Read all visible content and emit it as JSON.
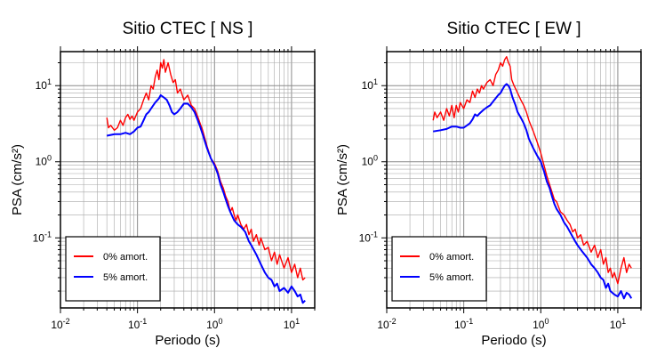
{
  "chart_data": [
    {
      "type": "line",
      "title": "Sitio CTEC [ NS ]",
      "xlabel": "Periodo (s)",
      "ylabel": "PSA (cm/s²)",
      "xscale": "log",
      "yscale": "log",
      "xlim": [
        0.01,
        20
      ],
      "ylim": [
        0.012,
        28
      ],
      "grid": true,
      "legend_position": "bottom-left",
      "series": [
        {
          "name": "0% amort.",
          "color": "#ff0000",
          "points": [
            [
              0.04,
              3.8
            ],
            [
              0.042,
              2.8
            ],
            [
              0.045,
              3.0
            ],
            [
              0.05,
              2.6
            ],
            [
              0.055,
              2.8
            ],
            [
              0.06,
              3.5
            ],
            [
              0.065,
              3.0
            ],
            [
              0.07,
              3.8
            ],
            [
              0.075,
              4.2
            ],
            [
              0.08,
              3.6
            ],
            [
              0.085,
              4.0
            ],
            [
              0.09,
              3.5
            ],
            [
              0.1,
              4.5
            ],
            [
              0.11,
              5.0
            ],
            [
              0.12,
              6.5
            ],
            [
              0.13,
              8.0
            ],
            [
              0.14,
              6.5
            ],
            [
              0.15,
              10.0
            ],
            [
              0.16,
              9.0
            ],
            [
              0.17,
              13.0
            ],
            [
              0.18,
              16.0
            ],
            [
              0.19,
              12.0
            ],
            [
              0.2,
              20.0
            ],
            [
              0.21,
              17.0
            ],
            [
              0.22,
              22.0
            ],
            [
              0.23,
              15.0
            ],
            [
              0.25,
              20.0
            ],
            [
              0.27,
              14.0
            ],
            [
              0.29,
              11.0
            ],
            [
              0.31,
              12.0
            ],
            [
              0.33,
              8.0
            ],
            [
              0.36,
              9.0
            ],
            [
              0.4,
              6.5
            ],
            [
              0.45,
              7.5
            ],
            [
              0.5,
              5.5
            ],
            [
              0.55,
              5.0
            ],
            [
              0.6,
              4.0
            ],
            [
              0.65,
              3.2
            ],
            [
              0.7,
              2.6
            ],
            [
              0.8,
              1.6
            ],
            [
              0.9,
              1.1
            ],
            [
              1.0,
              0.95
            ],
            [
              1.1,
              0.75
            ],
            [
              1.2,
              0.55
            ],
            [
              1.3,
              0.45
            ],
            [
              1.4,
              0.35
            ],
            [
              1.5,
              0.3
            ],
            [
              1.6,
              0.22
            ],
            [
              1.7,
              0.25
            ],
            [
              1.8,
              0.2
            ],
            [
              1.9,
              0.17
            ],
            [
              2.0,
              0.2
            ],
            [
              2.2,
              0.15
            ],
            [
              2.4,
              0.13
            ],
            [
              2.6,
              0.15
            ],
            [
              2.8,
              0.11
            ],
            [
              3.0,
              0.13
            ],
            [
              3.2,
              0.09
            ],
            [
              3.5,
              0.11
            ],
            [
              3.8,
              0.08
            ],
            [
              4.0,
              0.1
            ],
            [
              4.5,
              0.07
            ],
            [
              5.0,
              0.075
            ],
            [
              5.5,
              0.05
            ],
            [
              6.0,
              0.065
            ],
            [
              6.5,
              0.045
            ],
            [
              7.0,
              0.06
            ],
            [
              8.0,
              0.04
            ],
            [
              9.0,
              0.055
            ],
            [
              10.0,
              0.035
            ],
            [
              11.0,
              0.045
            ],
            [
              12.0,
              0.03
            ],
            [
              13.0,
              0.04
            ],
            [
              14.0,
              0.028
            ],
            [
              15.0,
              0.03
            ]
          ]
        },
        {
          "name": "5% amort.",
          "color": "#0000ff",
          "points": [
            [
              0.04,
              2.2
            ],
            [
              0.05,
              2.3
            ],
            [
              0.06,
              2.3
            ],
            [
              0.07,
              2.4
            ],
            [
              0.08,
              2.3
            ],
            [
              0.09,
              2.5
            ],
            [
              0.1,
              2.8
            ],
            [
              0.11,
              2.9
            ],
            [
              0.12,
              3.5
            ],
            [
              0.13,
              4.2
            ],
            [
              0.14,
              4.5
            ],
            [
              0.15,
              5.0
            ],
            [
              0.17,
              6.0
            ],
            [
              0.19,
              6.8
            ],
            [
              0.2,
              7.5
            ],
            [
              0.22,
              7.0
            ],
            [
              0.24,
              6.5
            ],
            [
              0.26,
              5.5
            ],
            [
              0.28,
              4.5
            ],
            [
              0.3,
              4.2
            ],
            [
              0.33,
              4.5
            ],
            [
              0.36,
              5.0
            ],
            [
              0.4,
              5.8
            ],
            [
              0.45,
              5.8
            ],
            [
              0.5,
              5.2
            ],
            [
              0.55,
              4.5
            ],
            [
              0.6,
              3.6
            ],
            [
              0.65,
              2.9
            ],
            [
              0.7,
              2.3
            ],
            [
              0.8,
              1.5
            ],
            [
              0.9,
              1.1
            ],
            [
              1.0,
              0.9
            ],
            [
              1.1,
              0.7
            ],
            [
              1.2,
              0.5
            ],
            [
              1.3,
              0.4
            ],
            [
              1.4,
              0.32
            ],
            [
              1.5,
              0.26
            ],
            [
              1.6,
              0.22
            ],
            [
              1.8,
              0.17
            ],
            [
              2.0,
              0.15
            ],
            [
              2.2,
              0.14
            ],
            [
              2.5,
              0.12
            ],
            [
              2.8,
              0.09
            ],
            [
              3.0,
              0.08
            ],
            [
              3.5,
              0.06
            ],
            [
              4.0,
              0.045
            ],
            [
              4.5,
              0.035
            ],
            [
              5.0,
              0.03
            ],
            [
              5.5,
              0.028
            ],
            [
              6.0,
              0.023
            ],
            [
              6.5,
              0.025
            ],
            [
              7.0,
              0.02
            ],
            [
              8.0,
              0.022
            ],
            [
              9.0,
              0.019
            ],
            [
              10.0,
              0.023
            ],
            [
              11.0,
              0.02
            ],
            [
              12.0,
              0.017
            ],
            [
              13.0,
              0.018
            ],
            [
              14.0,
              0.014
            ],
            [
              15.0,
              0.015
            ]
          ]
        }
      ]
    },
    {
      "type": "line",
      "title": "Sitio CTEC [ EW ]",
      "xlabel": "Periodo (s)",
      "ylabel": "PSA (cm/s²)",
      "xscale": "log",
      "yscale": "log",
      "xlim": [
        0.01,
        20
      ],
      "ylim": [
        0.012,
        28
      ],
      "grid": true,
      "legend_position": "bottom-left",
      "series": [
        {
          "name": "0% amort.",
          "color": "#ff0000",
          "points": [
            [
              0.04,
              3.5
            ],
            [
              0.042,
              4.5
            ],
            [
              0.045,
              3.8
            ],
            [
              0.05,
              4.5
            ],
            [
              0.055,
              3.5
            ],
            [
              0.06,
              5.0
            ],
            [
              0.065,
              4.0
            ],
            [
              0.07,
              5.5
            ],
            [
              0.075,
              3.8
            ],
            [
              0.08,
              5.5
            ],
            [
              0.085,
              4.5
            ],
            [
              0.09,
              6.0
            ],
            [
              0.1,
              5.0
            ],
            [
              0.11,
              6.5
            ],
            [
              0.12,
              6.0
            ],
            [
              0.13,
              8.5
            ],
            [
              0.14,
              7.0
            ],
            [
              0.15,
              9.0
            ],
            [
              0.16,
              8.0
            ],
            [
              0.17,
              10.0
            ],
            [
              0.18,
              9.0
            ],
            [
              0.2,
              11.0
            ],
            [
              0.22,
              12.0
            ],
            [
              0.24,
              10.0
            ],
            [
              0.26,
              14.0
            ],
            [
              0.28,
              16.0
            ],
            [
              0.3,
              20.0
            ],
            [
              0.32,
              18.0
            ],
            [
              0.34,
              22.0
            ],
            [
              0.36,
              24.0
            ],
            [
              0.38,
              20.0
            ],
            [
              0.4,
              18.0
            ],
            [
              0.42,
              12.0
            ],
            [
              0.45,
              10.0
            ],
            [
              0.5,
              8.0
            ],
            [
              0.55,
              6.5
            ],
            [
              0.6,
              5.5
            ],
            [
              0.65,
              4.5
            ],
            [
              0.7,
              3.5
            ],
            [
              0.8,
              2.5
            ],
            [
              0.9,
              1.8
            ],
            [
              1.0,
              1.3
            ],
            [
              1.1,
              0.9
            ],
            [
              1.2,
              0.65
            ],
            [
              1.3,
              0.5
            ],
            [
              1.4,
              0.4
            ],
            [
              1.5,
              0.32
            ],
            [
              1.6,
              0.3
            ],
            [
              1.8,
              0.22
            ],
            [
              2.0,
              0.2
            ],
            [
              2.2,
              0.17
            ],
            [
              2.4,
              0.15
            ],
            [
              2.6,
              0.12
            ],
            [
              2.8,
              0.13
            ],
            [
              3.0,
              0.1
            ],
            [
              3.3,
              0.11
            ],
            [
              3.6,
              0.08
            ],
            [
              4.0,
              0.09
            ],
            [
              4.5,
              0.065
            ],
            [
              5.0,
              0.08
            ],
            [
              5.5,
              0.055
            ],
            [
              6.0,
              0.07
            ],
            [
              6.5,
              0.045
            ],
            [
              7.0,
              0.055
            ],
            [
              7.5,
              0.035
            ],
            [
              8.0,
              0.04
            ],
            [
              8.5,
              0.03
            ],
            [
              9.0,
              0.035
            ],
            [
              10.0,
              0.025
            ],
            [
              11.0,
              0.04
            ],
            [
              12.0,
              0.055
            ],
            [
              13.0,
              0.035
            ],
            [
              14.0,
              0.045
            ],
            [
              15.0,
              0.04
            ]
          ]
        },
        {
          "name": "5% amort.",
          "color": "#0000ff",
          "points": [
            [
              0.04,
              2.5
            ],
            [
              0.05,
              2.6
            ],
            [
              0.06,
              2.7
            ],
            [
              0.07,
              2.9
            ],
            [
              0.08,
              2.9
            ],
            [
              0.09,
              2.8
            ],
            [
              0.1,
              2.8
            ],
            [
              0.11,
              3.0
            ],
            [
              0.12,
              3.2
            ],
            [
              0.13,
              3.6
            ],
            [
              0.14,
              4.2
            ],
            [
              0.15,
              4.0
            ],
            [
              0.16,
              4.3
            ],
            [
              0.18,
              4.8
            ],
            [
              0.2,
              5.2
            ],
            [
              0.22,
              5.5
            ],
            [
              0.25,
              6.5
            ],
            [
              0.28,
              7.5
            ],
            [
              0.3,
              8.0
            ],
            [
              0.32,
              9.0
            ],
            [
              0.34,
              10.0
            ],
            [
              0.36,
              10.5
            ],
            [
              0.38,
              10.0
            ],
            [
              0.4,
              9.0
            ],
            [
              0.43,
              7.0
            ],
            [
              0.47,
              5.5
            ],
            [
              0.5,
              4.5
            ],
            [
              0.55,
              3.8
            ],
            [
              0.6,
              3.2
            ],
            [
              0.65,
              2.6
            ],
            [
              0.7,
              2.0
            ],
            [
              0.8,
              1.5
            ],
            [
              0.9,
              1.2
            ],
            [
              1.0,
              1.0
            ],
            [
              1.1,
              0.75
            ],
            [
              1.2,
              0.55
            ],
            [
              1.3,
              0.45
            ],
            [
              1.4,
              0.35
            ],
            [
              1.5,
              0.28
            ],
            [
              1.6,
              0.24
            ],
            [
              1.8,
              0.2
            ],
            [
              2.0,
              0.16
            ],
            [
              2.2,
              0.14
            ],
            [
              2.5,
              0.11
            ],
            [
              2.8,
              0.09
            ],
            [
              3.0,
              0.08
            ],
            [
              3.5,
              0.065
            ],
            [
              4.0,
              0.055
            ],
            [
              4.5,
              0.045
            ],
            [
              5.0,
              0.04
            ],
            [
              5.5,
              0.035
            ],
            [
              6.0,
              0.03
            ],
            [
              6.5,
              0.028
            ],
            [
              7.0,
              0.022
            ],
            [
              7.5,
              0.025
            ],
            [
              8.0,
              0.02
            ],
            [
              9.0,
              0.018
            ],
            [
              10.0,
              0.017
            ],
            [
              11.0,
              0.02
            ],
            [
              12.0,
              0.016
            ],
            [
              13.0,
              0.019
            ],
            [
              14.0,
              0.018
            ],
            [
              15.0,
              0.016
            ]
          ]
        }
      ]
    }
  ]
}
